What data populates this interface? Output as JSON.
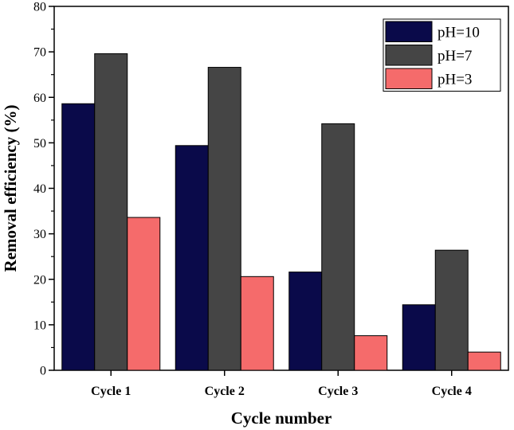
{
  "chart_data": {
    "type": "bar",
    "categories": [
      "Cycle 1",
      "Cycle 2",
      "Cycle 3",
      "Cycle 4"
    ],
    "series": [
      {
        "name": "pH=10",
        "color": "#0a0a4a",
        "values": [
          58.6,
          49.4,
          21.6,
          14.4
        ]
      },
      {
        "name": "pH=7",
        "color": "#454545",
        "values": [
          69.6,
          66.6,
          54.2,
          26.4
        ]
      },
      {
        "name": "pH=3",
        "color": "#f56b6b",
        "values": [
          33.6,
          20.6,
          7.6,
          4.0
        ]
      }
    ],
    "xlabel": "Cycle number",
    "ylabel": "Removal efficiency (%)",
    "ylim": [
      0,
      80
    ],
    "yticks": [
      0,
      10,
      20,
      30,
      40,
      50,
      60,
      70,
      80
    ],
    "grid": false,
    "legend_position": "top-right"
  }
}
